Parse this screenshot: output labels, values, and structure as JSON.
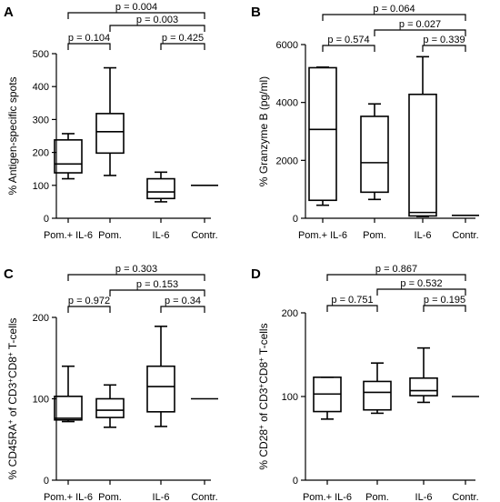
{
  "chart_data": [
    {
      "type": "boxplot",
      "panel_label": "A",
      "ylabel": "% Antigen-specific spots",
      "ylim": [
        0,
        500
      ],
      "yticks": [
        0,
        100,
        200,
        300,
        400,
        500
      ],
      "categories": [
        "Pom.+ IL-6",
        "Pom.",
        "IL-6",
        "Contr."
      ],
      "boxes": [
        {
          "min": 120,
          "q1": 138,
          "median": 165,
          "q3": 238,
          "max": 257
        },
        {
          "min": 130,
          "q1": 198,
          "median": 263,
          "q3": 318,
          "max": 457
        },
        {
          "min": 50,
          "q1": 60,
          "median": 80,
          "q3": 120,
          "max": 140
        },
        {
          "min": 100,
          "q1": 100,
          "median": 100,
          "q3": 100,
          "max": 100
        }
      ],
      "comparisons": [
        {
          "from": 0,
          "to": 1,
          "label": "p = 0.104",
          "level": 0
        },
        {
          "from": 2,
          "to": 3,
          "label": "p = 0.425",
          "level": 0
        },
        {
          "from": 1,
          "to": 3,
          "label": "p = 0.003",
          "level": 1
        },
        {
          "from": 0,
          "to": 3,
          "label": "p = 0.004",
          "level": 2
        }
      ]
    },
    {
      "type": "boxplot",
      "panel_label": "B",
      "ylabel": "% Granzyme B (pg/ml)",
      "ylim": [
        0,
        6000
      ],
      "yticks": [
        0,
        2000,
        4000,
        6000
      ],
      "categories": [
        "Pom.+ IL-6",
        "Pom.",
        "IL-6",
        "Contr."
      ],
      "boxes": [
        {
          "min": 450,
          "q1": 620,
          "median": 3070,
          "q3": 5200,
          "max": 5220
        },
        {
          "min": 650,
          "q1": 900,
          "median": 1920,
          "q3": 3520,
          "max": 3950
        },
        {
          "min": 60,
          "q1": 80,
          "median": 200,
          "q3": 4280,
          "max": 5580
        },
        {
          "min": 100,
          "q1": 100,
          "median": 100,
          "q3": 100,
          "max": 100
        }
      ],
      "comparisons": [
        {
          "from": 0,
          "to": 1,
          "label": "p = 0.574",
          "level": 0
        },
        {
          "from": 2,
          "to": 3,
          "label": "p = 0.339",
          "level": 0
        },
        {
          "from": 1,
          "to": 3,
          "label": "p = 0.027",
          "level": 1
        },
        {
          "from": 0,
          "to": 3,
          "label": "p = 0.064",
          "level": 2
        }
      ]
    },
    {
      "type": "boxplot",
      "panel_label": "C",
      "ylabel_html": "% CD45RA<tspan baseline-shift=\"super\" font-size=\"8\">+</tspan> of CD3<tspan baseline-shift=\"super\" font-size=\"8\">+</tspan>CD8<tspan baseline-shift=\"super\" font-size=\"8\">+</tspan> T-cells",
      "ylim": [
        0,
        200
      ],
      "yticks": [
        0,
        100,
        200
      ],
      "categories": [
        "Pom.+ IL-6",
        "Pom.",
        "IL-6",
        "Contr."
      ],
      "boxes": [
        {
          "min": 72,
          "q1": 74,
          "median": 76,
          "q3": 103,
          "max": 140
        },
        {
          "min": 65,
          "q1": 77,
          "median": 86,
          "q3": 100,
          "max": 117
        },
        {
          "min": 66,
          "q1": 84,
          "median": 115,
          "q3": 140,
          "max": 189
        },
        {
          "min": 100,
          "q1": 100,
          "median": 100,
          "q3": 100,
          "max": 100
        }
      ],
      "comparisons": [
        {
          "from": 0,
          "to": 1,
          "label": "p = 0.972",
          "level": 0
        },
        {
          "from": 2,
          "to": 3,
          "label": "p = 0.34",
          "level": 0
        },
        {
          "from": 1,
          "to": 3,
          "label": "p = 0.153",
          "level": 1
        },
        {
          "from": 0,
          "to": 3,
          "label": "p = 0.303",
          "level": 2
        }
      ]
    },
    {
      "type": "boxplot",
      "panel_label": "D",
      "ylabel_html": "% CD28<tspan baseline-shift=\"super\" font-size=\"8\">+</tspan> of CD3<tspan baseline-shift=\"super\" font-size=\"8\">+</tspan>CD8<tspan baseline-shift=\"super\" font-size=\"8\">+</tspan> T-cells",
      "ylim": [
        0,
        200
      ],
      "yticks": [
        0,
        100,
        200
      ],
      "categories": [
        "Pom.+ IL-6",
        "Pom.",
        "IL-6",
        "Contr."
      ],
      "boxes": [
        {
          "min": 73,
          "q1": 82,
          "median": 103,
          "q3": 123,
          "max": 123
        },
        {
          "min": 80,
          "q1": 84,
          "median": 105,
          "q3": 118,
          "max": 140
        },
        {
          "min": 93,
          "q1": 101,
          "median": 107,
          "q3": 122,
          "max": 158
        },
        {
          "min": 100,
          "q1": 100,
          "median": 100,
          "q3": 100,
          "max": 100
        }
      ],
      "comparisons": [
        {
          "from": 0,
          "to": 1,
          "label": "p = 0.751",
          "level": 0
        },
        {
          "from": 2,
          "to": 3,
          "label": "p = 0.195",
          "level": 0
        },
        {
          "from": 1,
          "to": 3,
          "label": "p = 0.532",
          "level": 1
        },
        {
          "from": 0,
          "to": 3,
          "label": "p = 0.867",
          "level": 2
        }
      ]
    }
  ]
}
